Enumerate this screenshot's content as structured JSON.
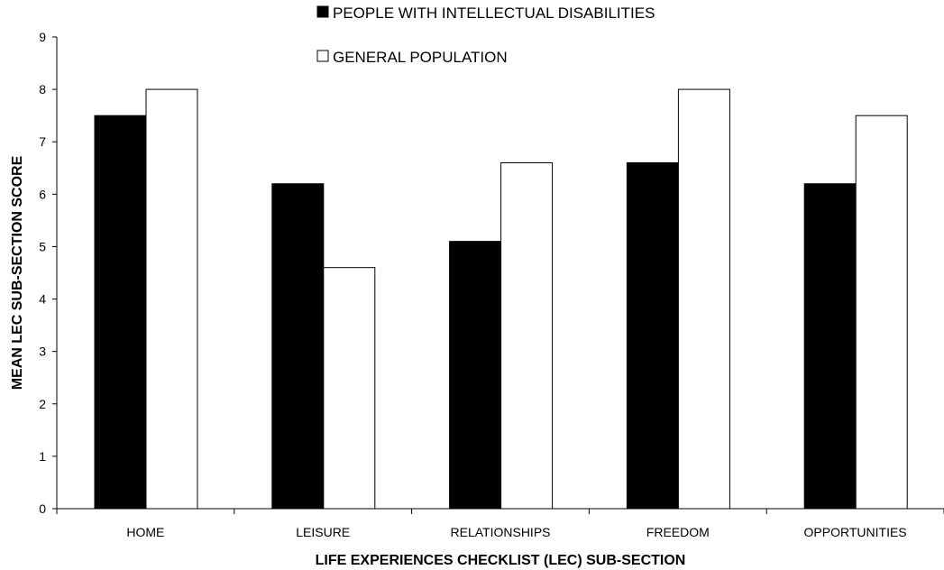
{
  "chart_data": {
    "type": "bar",
    "title": "",
    "xlabel": "LIFE EXPERIENCES CHECKLIST (LEC) SUB-SECTION",
    "ylabel": "MEAN LEC SUB-SECTION SCORE",
    "categories": [
      "HOME",
      "LEISURE",
      "RELATIONSHIPS",
      "FREEDOM",
      "OPPORTUNITIES"
    ],
    "series": [
      {
        "name": "PEOPLE WITH INTELLECTUAL DISABILITIES",
        "values": [
          7.5,
          6.2,
          5.1,
          6.6,
          6.2
        ],
        "color": "#000000"
      },
      {
        "name": "GENERAL POPULATION",
        "values": [
          8.0,
          4.6,
          6.6,
          8.0,
          7.5
        ],
        "color": "#ffffff"
      }
    ],
    "ylim": [
      0,
      9
    ],
    "yticks": [
      0,
      1,
      2,
      3,
      4,
      5,
      6,
      7,
      8,
      9
    ],
    "grid": false,
    "legend_position": "top-right"
  }
}
